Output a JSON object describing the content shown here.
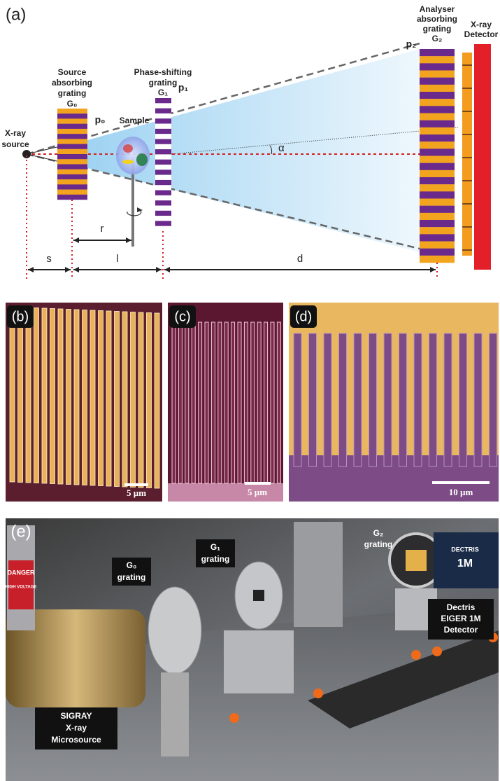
{
  "panels": {
    "a": {
      "label": "(a)",
      "source": [
        "X-ray",
        "source"
      ],
      "g0": [
        "Source",
        "absorbing",
        "grating",
        "G₀"
      ],
      "p0": "p₀",
      "sample": "Sample",
      "g1": [
        "Phase-shifting",
        "grating",
        "G₁"
      ],
      "p1": "p₁",
      "g2": [
        "Analyser",
        "absorbing",
        "grating",
        "G₂"
      ],
      "p2": "p₂",
      "detector": [
        "X-ray",
        "Detector"
      ],
      "alpha": "α",
      "r": "r",
      "s": "s",
      "l": "l",
      "d": "d"
    },
    "b": {
      "label": "(b)",
      "scale": "5 µm"
    },
    "c": {
      "label": "(c)",
      "scale": "5 µm"
    },
    "d": {
      "label": "(d)",
      "scale": "10 µm"
    },
    "e": {
      "label": "(e)",
      "g0": [
        "G₀",
        "grating"
      ],
      "g1": [
        "G₁",
        "grating"
      ],
      "g2": [
        "G₂",
        "grating"
      ],
      "detector": [
        "Dectris",
        "EIGER 1M",
        "Detector"
      ],
      "source": [
        "SIGRAY",
        "X-ray",
        "Microsource"
      ],
      "danger": [
        "DANGER",
        "HIGH VOLTAGE"
      ],
      "brand": [
        "DECTRIS",
        "1M"
      ]
    }
  }
}
